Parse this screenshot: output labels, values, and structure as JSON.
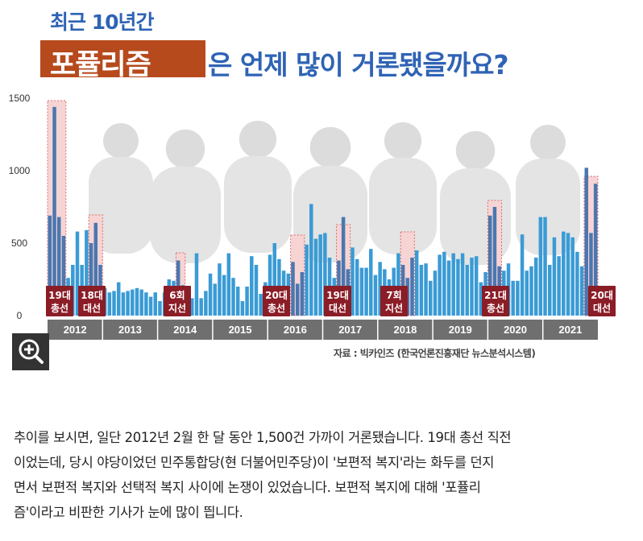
{
  "header": {
    "subtitle": "최근 10년간",
    "title_highlight": "포퓰리즘",
    "title_rest": "은 언제 많이 거론됐을까요?"
  },
  "chart_data": {
    "type": "bar",
    "y_ticks": [
      "1500",
      "1000",
      "500",
      "0"
    ],
    "ylim": [
      0,
      1500
    ],
    "years": [
      "2012",
      "2013",
      "2014",
      "2015",
      "2016",
      "2017",
      "2018",
      "2019",
      "2020",
      "2021"
    ],
    "values": [
      690,
      1440,
      680,
      550,
      260,
      350,
      580,
      350,
      590,
      500,
      640,
      350,
      190,
      160,
      170,
      230,
      160,
      170,
      180,
      190,
      180,
      160,
      130,
      160,
      100,
      160,
      250,
      240,
      380,
      210,
      110,
      120,
      430,
      120,
      170,
      290,
      220,
      360,
      280,
      430,
      260,
      200,
      100,
      200,
      410,
      350,
      150,
      230,
      420,
      500,
      390,
      310,
      290,
      370,
      220,
      300,
      490,
      770,
      530,
      560,
      570,
      400,
      260,
      380,
      680,
      320,
      470,
      390,
      330,
      330,
      460,
      280,
      370,
      320,
      250,
      330,
      430,
      350,
      260,
      400,
      450,
      350,
      360,
      240,
      310,
      420,
      440,
      380,
      430,
      390,
      430,
      350,
      400,
      410,
      230,
      300,
      690,
      750,
      340,
      310,
      360,
      240,
      240,
      560,
      310,
      340,
      400,
      680,
      680,
      350,
      540,
      410,
      580,
      570,
      540,
      440,
      340,
      1020,
      570,
      910
    ],
    "highlights": [
      {
        "label1": "19대",
        "label2": "총선"
      },
      {
        "label1": "18대",
        "label2": "대선"
      },
      {
        "label1": "6회",
        "label2": "지선"
      },
      {
        "label1": "20대",
        "label2": "총선"
      },
      {
        "label1": "19대",
        "label2": "대선"
      },
      {
        "label1": "7회",
        "label2": "지선"
      },
      {
        "label1": "21대",
        "label2": "총선"
      },
      {
        "label1": "20대",
        "label2": "대선"
      }
    ]
  },
  "source": "자료 : 빅카인즈 (한국언론진흥재단 뉴스분석시스템)",
  "paragraphs": [
    "추이를 보시면, 일단 2012년 2월 한 달 동안 1,500건 가까이 거론됐습니다. 19대 총선 직전",
    "이었는데, 당시 야당이었던 민주통합당(현 더불어민주당)이 '보편적 복지'라는 화두를 던지",
    "면서 보편적 복지와 선택적 복지 사이에 논쟁이 있었습니다. 보편적 복지에 대해 '포퓰리",
    "즘'이라고 비판한 기사가 눈에 많이 띕니다."
  ],
  "colors": {
    "bar": "#3a9bd5",
    "bar_highlight": "#4a77b0",
    "highlight_fill": "#f7d4d4",
    "highlight_border": "#d86c6c",
    "label_fill": "#8b1d27",
    "axis_band": "#6f6f6f",
    "year_divider": "#ffffff",
    "title_box": "#b64a1c",
    "title_blue": "#2f63b5"
  }
}
